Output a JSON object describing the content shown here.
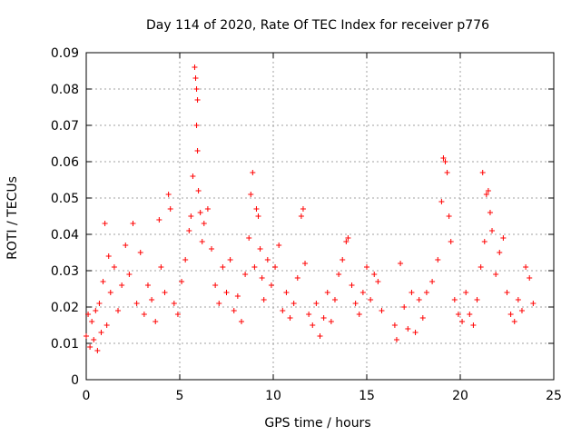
{
  "chart_data": {
    "type": "scatter",
    "title": "Day 114 of 2020, Rate Of TEC Index for receiver p776",
    "xlabel": "GPS time / hours",
    "ylabel": "ROTI / TECUs",
    "xlim": [
      0,
      25
    ],
    "ylim": [
      0,
      0.09
    ],
    "xticks": [
      0,
      5,
      10,
      15,
      20,
      25
    ],
    "xtick_labels": [
      "0",
      "5",
      "10",
      "15",
      "20",
      "25"
    ],
    "yticks": [
      0,
      0.01,
      0.02,
      0.03,
      0.04,
      0.05,
      0.06,
      0.07,
      0.08,
      0.09
    ],
    "ytick_labels": [
      "0",
      "0.01",
      "0.02",
      "0.03",
      "0.04",
      "0.05",
      "0.06",
      "0.07",
      "0.08",
      "0.09"
    ],
    "grid": true,
    "marker": "+",
    "color": "#ff0000",
    "series": [
      {
        "name": "ROTI",
        "points": [
          [
            0.0,
            0.012
          ],
          [
            0.1,
            0.018
          ],
          [
            0.2,
            0.009
          ],
          [
            0.3,
            0.016
          ],
          [
            0.4,
            0.011
          ],
          [
            0.5,
            0.019
          ],
          [
            0.6,
            0.008
          ],
          [
            0.7,
            0.021
          ],
          [
            0.8,
            0.013
          ],
          [
            0.9,
            0.027
          ],
          [
            1.0,
            0.043
          ],
          [
            1.1,
            0.015
          ],
          [
            1.2,
            0.034
          ],
          [
            1.3,
            0.024
          ],
          [
            1.5,
            0.031
          ],
          [
            1.7,
            0.019
          ],
          [
            1.9,
            0.026
          ],
          [
            2.1,
            0.037
          ],
          [
            2.3,
            0.029
          ],
          [
            2.5,
            0.043
          ],
          [
            2.7,
            0.021
          ],
          [
            2.9,
            0.035
          ],
          [
            3.1,
            0.018
          ],
          [
            3.3,
            0.026
          ],
          [
            3.5,
            0.022
          ],
          [
            3.7,
            0.016
          ],
          [
            3.9,
            0.044
          ],
          [
            4.0,
            0.031
          ],
          [
            4.2,
            0.024
          ],
          [
            4.4,
            0.051
          ],
          [
            4.5,
            0.047
          ],
          [
            4.7,
            0.021
          ],
          [
            4.9,
            0.018
          ],
          [
            5.1,
            0.027
          ],
          [
            5.3,
            0.033
          ],
          [
            5.5,
            0.041
          ],
          [
            5.6,
            0.045
          ],
          [
            5.7,
            0.056
          ],
          [
            5.8,
            0.086
          ],
          [
            5.85,
            0.083
          ],
          [
            5.9,
            0.08
          ],
          [
            5.95,
            0.077
          ],
          [
            5.9,
            0.07
          ],
          [
            5.95,
            0.063
          ],
          [
            6.0,
            0.052
          ],
          [
            6.1,
            0.046
          ],
          [
            6.2,
            0.038
          ],
          [
            6.3,
            0.043
          ],
          [
            6.5,
            0.047
          ],
          [
            6.7,
            0.036
          ],
          [
            6.9,
            0.026
          ],
          [
            7.1,
            0.021
          ],
          [
            7.3,
            0.031
          ],
          [
            7.5,
            0.024
          ],
          [
            7.7,
            0.033
          ],
          [
            7.9,
            0.019
          ],
          [
            8.1,
            0.023
          ],
          [
            8.3,
            0.016
          ],
          [
            8.5,
            0.029
          ],
          [
            8.7,
            0.039
          ],
          [
            8.8,
            0.051
          ],
          [
            8.9,
            0.057
          ],
          [
            9.0,
            0.031
          ],
          [
            9.1,
            0.047
          ],
          [
            9.2,
            0.045
          ],
          [
            9.3,
            0.036
          ],
          [
            9.4,
            0.028
          ],
          [
            9.5,
            0.022
          ],
          [
            9.7,
            0.033
          ],
          [
            9.9,
            0.026
          ],
          [
            10.1,
            0.031
          ],
          [
            10.3,
            0.037
          ],
          [
            10.5,
            0.019
          ],
          [
            10.7,
            0.024
          ],
          [
            10.9,
            0.017
          ],
          [
            11.1,
            0.021
          ],
          [
            11.3,
            0.028
          ],
          [
            11.5,
            0.045
          ],
          [
            11.6,
            0.047
          ],
          [
            11.7,
            0.032
          ],
          [
            11.9,
            0.018
          ],
          [
            12.1,
            0.015
          ],
          [
            12.3,
            0.021
          ],
          [
            12.5,
            0.012
          ],
          [
            12.7,
            0.017
          ],
          [
            12.9,
            0.024
          ],
          [
            13.1,
            0.016
          ],
          [
            13.3,
            0.022
          ],
          [
            13.5,
            0.029
          ],
          [
            13.7,
            0.033
          ],
          [
            13.9,
            0.038
          ],
          [
            14.0,
            0.039
          ],
          [
            14.2,
            0.026
          ],
          [
            14.4,
            0.021
          ],
          [
            14.6,
            0.018
          ],
          [
            14.8,
            0.024
          ],
          [
            15.0,
            0.031
          ],
          [
            15.2,
            0.022
          ],
          [
            15.4,
            0.029
          ],
          [
            15.6,
            0.027
          ],
          [
            15.8,
            0.019
          ],
          [
            16.5,
            0.015
          ],
          [
            16.6,
            0.011
          ],
          [
            16.8,
            0.032
          ],
          [
            17.0,
            0.02
          ],
          [
            17.2,
            0.014
          ],
          [
            17.4,
            0.024
          ],
          [
            17.6,
            0.013
          ],
          [
            17.8,
            0.022
          ],
          [
            18.0,
            0.017
          ],
          [
            18.2,
            0.024
          ],
          [
            18.5,
            0.027
          ],
          [
            18.8,
            0.033
          ],
          [
            19.0,
            0.049
          ],
          [
            19.1,
            0.061
          ],
          [
            19.2,
            0.06
          ],
          [
            19.3,
            0.057
          ],
          [
            19.4,
            0.045
          ],
          [
            19.5,
            0.038
          ],
          [
            19.7,
            0.022
          ],
          [
            19.9,
            0.018
          ],
          [
            20.1,
            0.016
          ],
          [
            20.3,
            0.024
          ],
          [
            20.5,
            0.018
          ],
          [
            20.7,
            0.015
          ],
          [
            20.9,
            0.022
          ],
          [
            21.1,
            0.031
          ],
          [
            21.2,
            0.057
          ],
          [
            21.3,
            0.038
          ],
          [
            21.4,
            0.051
          ],
          [
            21.5,
            0.052
          ],
          [
            21.6,
            0.046
          ],
          [
            21.7,
            0.041
          ],
          [
            21.9,
            0.029
          ],
          [
            22.1,
            0.035
          ],
          [
            22.3,
            0.039
          ],
          [
            22.5,
            0.024
          ],
          [
            22.7,
            0.018
          ],
          [
            22.9,
            0.016
          ],
          [
            23.1,
            0.022
          ],
          [
            23.3,
            0.019
          ],
          [
            23.5,
            0.031
          ],
          [
            23.7,
            0.028
          ],
          [
            23.9,
            0.021
          ]
        ]
      }
    ]
  }
}
